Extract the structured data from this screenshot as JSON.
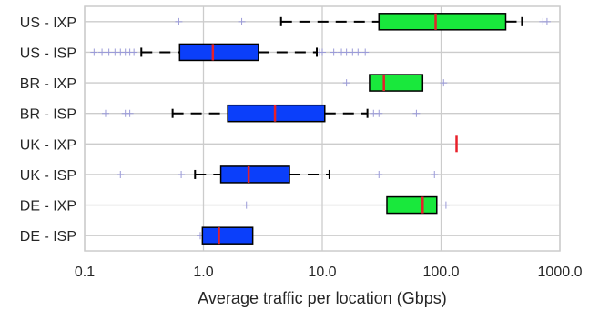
{
  "chart_data": {
    "type": "box",
    "orientation": "horizontal",
    "x_scale": "log",
    "xlim": [
      0.1,
      1000.0
    ],
    "xticks": [
      0.1,
      1.0,
      10.0,
      100.0,
      1000.0
    ],
    "xtick_labels": [
      "0.1",
      "1.0",
      "10.0",
      "100.0",
      "1000.0"
    ],
    "xlabel": "Average traffic per location (Gbps)",
    "grid": true,
    "colors": {
      "ixp": "#19e83c",
      "isp": "#0b3ffa",
      "median": "#e8202a",
      "outlier": "#9b9bd8"
    },
    "categories": [
      "US - IXP",
      "US - ISP",
      "BR - IXP",
      "BR - ISP",
      "UK - IXP",
      "UK - ISP",
      "DE - IXP",
      "DE - ISP"
    ],
    "boxes": [
      {
        "label": "US - IXP",
        "group": "ixp",
        "whisker_low": 4.5,
        "q1": 30,
        "median": 90,
        "q3": 350,
        "whisker_high": 480,
        "outliers": [
          0.62,
          2.1,
          720,
          780
        ]
      },
      {
        "label": "US - ISP",
        "group": "isp",
        "whisker_low": 0.3,
        "q1": 0.63,
        "median": 1.2,
        "q3": 2.9,
        "whisker_high": 9.0,
        "outliers": [
          0.12,
          0.14,
          0.16,
          0.18,
          0.2,
          0.22,
          0.24,
          0.26,
          9.5,
          10.0,
          12.5,
          14.5,
          16,
          18,
          20,
          23
        ]
      },
      {
        "label": "BR - IXP",
        "group": "ixp",
        "whisker_low": 25,
        "q1": 25,
        "median": 33,
        "q3": 70,
        "whisker_high": 70,
        "outliers": [
          16,
          105
        ]
      },
      {
        "label": "BR - ISP",
        "group": "isp",
        "whisker_low": 0.55,
        "q1": 1.6,
        "median": 4.0,
        "q3": 10.5,
        "whisker_high": 24,
        "outliers": [
          0.15,
          0.22,
          0.24,
          27,
          30,
          62
        ]
      },
      {
        "label": "UK - IXP",
        "group": "ixp",
        "whisker_low": 135,
        "q1": 135,
        "median": 135,
        "q3": 135,
        "whisker_high": 135,
        "outliers": []
      },
      {
        "label": "UK - ISP",
        "group": "isp",
        "whisker_low": 0.85,
        "q1": 1.4,
        "median": 2.4,
        "q3": 5.3,
        "whisker_high": 11.5,
        "outliers": [
          0.2,
          0.65,
          30,
          88
        ]
      },
      {
        "label": "DE - IXP",
        "group": "ixp",
        "whisker_low": 35,
        "q1": 35,
        "median": 70,
        "q3": 92,
        "whisker_high": 92,
        "outliers": [
          2.3,
          110
        ]
      },
      {
        "label": "DE - ISP",
        "group": "isp",
        "whisker_low": 0.98,
        "q1": 0.98,
        "median": 1.35,
        "q3": 2.6,
        "whisker_high": 2.6,
        "outliers": [
          0.94
        ]
      }
    ]
  }
}
